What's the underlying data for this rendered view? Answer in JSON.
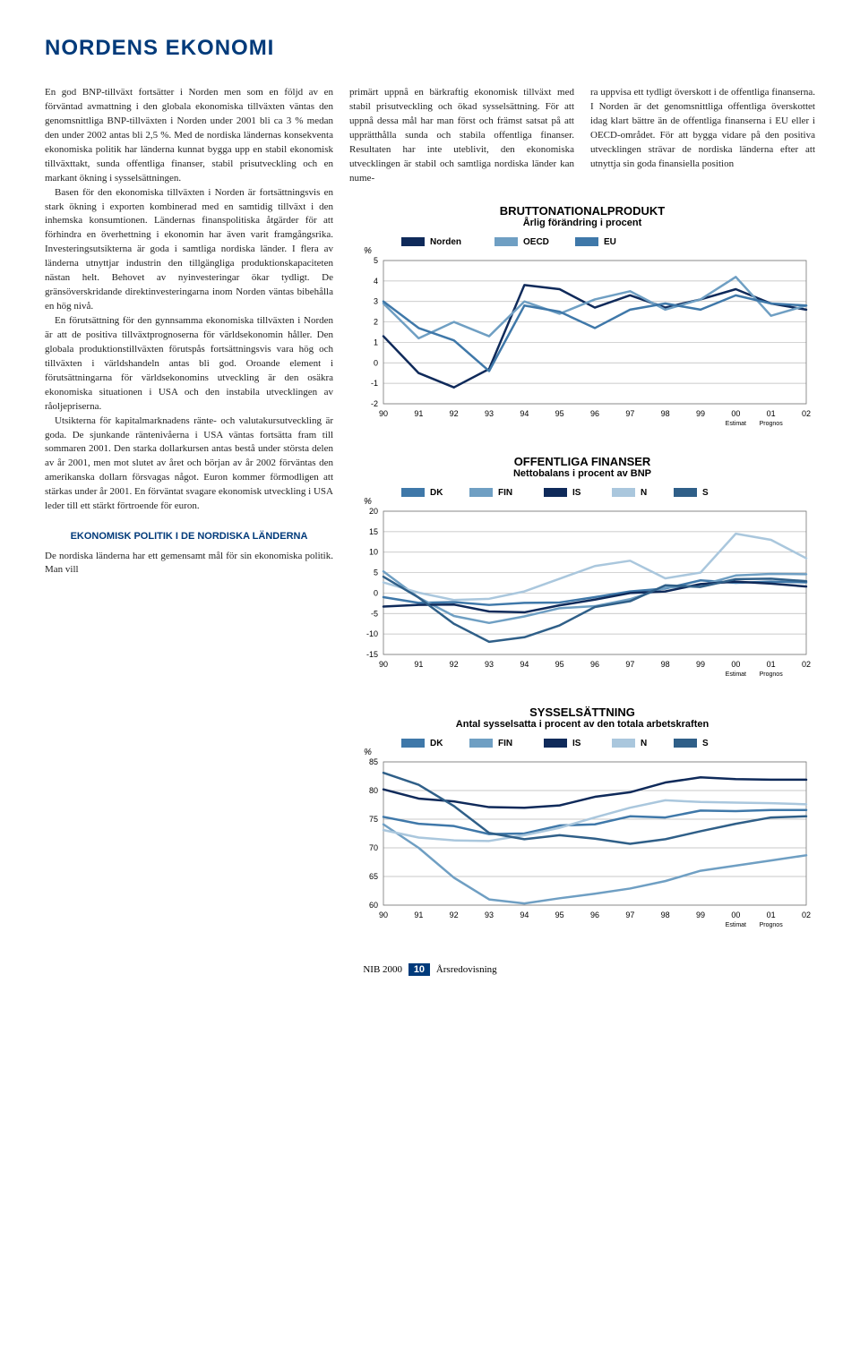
{
  "title": "NORDENS EKONOMI",
  "body_col1_paragraphs": [
    "En god BNP-tillväxt fortsätter i Norden men som en följd av en förväntad avmattning i den globala ekonomiska tillväxten väntas den genomsnittliga BNP-tillväxten i Norden under 2001 bli ca 3 % medan den under 2002 antas bli 2,5 %. Med de nordiska ländernas konsekventa ekonomiska politik har länderna kunnat bygga upp en stabil ekonomisk tillväxttakt, sunda offentliga finanser, stabil prisutveckling och en markant ökning i sysselsättningen.",
    "Basen för den ekonomiska tillväxten i Norden är fortsättningsvis en stark ökning i exporten kombinerad med en samtidig tillväxt i den inhemska konsumtionen. Ländernas finanspolitiska åtgärder för att förhindra en överhettning i ekonomin har även varit framgångsrika. Investeringsutsikterna är goda i samtliga nordiska länder. I flera av länderna utnyttjar industrin den tillgängliga produktionskapaciteten nästan helt. Behovet av nyinvesteringar ökar tydligt. De gränsöverskridande direktinvesteringarna inom Norden väntas bibehålla en hög nivå.",
    "En förutsättning för den gynnsamma ekonomiska tillväxten i Norden är att de positiva tillväxtprognoserna för världsekonomin håller. Den globala produktionstillväxten förutspås fortsättningsvis vara hög och tillväxten i världshandeln antas bli god. Oroande element i förutsättningarna för världsekonomins utveckling är den osäkra ekonomiska situationen i USA och den instabila utvecklingen av råoljepriserna.",
    "Utsikterna för kapitalmarknadens ränte- och valutakursutveckling är goda. De sjunkande räntenivåerna i USA väntas fortsätta fram till sommaren 2001. Den starka dollarkursen antas bestå under största delen av år 2001, men mot slutet av året och början av år 2002 förväntas den amerikanska dollarn försvagas något. Euron kommer förmodligen att stärkas under år 2001. En förväntat svagare ekonomisk utveckling i USA leder till ett stärkt förtroende för euron."
  ],
  "subhead1": "EKONOMISK POLITIK I DE NORDISKA LÄNDERNA",
  "body_col1_p5": "De nordiska länderna har ett gemensamt mål för sin ekonomiska politik. Man vill",
  "top_col_a": "primärt uppnå en bärkraftig ekonomisk tillväxt med stabil prisutveckling och ökad sysselsättning. För att uppnå dessa mål har man först och främst satsat på att upprätthålla sunda och stabila offentliga finanser. Resultaten har inte uteblivit, den ekonomiska utvecklingen är stabil och samtliga nordiska länder kan nume-",
  "top_col_b": "ra uppvisa ett tydligt överskott i de offentliga finanserna. I Norden är det genomsnittliga offentliga överskottet idag klart bättre än de offentliga finanserna i EU eller i OECD-området. För att bygga vidare på den positiva utvecklingen strävar de nordiska länderna efter att utnyttja sin goda finansiella position",
  "chart1": {
    "type": "line",
    "title": "BRUTTONATIONALPRODUKT",
    "subtitle": "Årlig förändring i procent",
    "ylabel": "%",
    "ylim": [
      -2,
      5
    ],
    "ytick_step": 1,
    "x_years": [
      90,
      91,
      92,
      93,
      94,
      95,
      96,
      97,
      98,
      99,
      0,
      1,
      2
    ],
    "x_labels": [
      "90",
      "91",
      "92",
      "93",
      "94",
      "95",
      "96",
      "97",
      "98",
      "99",
      "00",
      "01",
      "02"
    ],
    "x_notes": {
      "10": "Estimat",
      "11": "Prognos"
    },
    "series": [
      {
        "name": "Norden",
        "color": "#0f2a5a",
        "values": [
          1.3,
          -0.5,
          -1.2,
          -0.3,
          3.8,
          3.6,
          2.7,
          3.3,
          2.7,
          3.1,
          3.6,
          2.9,
          2.6
        ]
      },
      {
        "name": "OECD",
        "color": "#6f9fc3",
        "values": [
          2.9,
          1.2,
          2.0,
          1.3,
          3.0,
          2.4,
          3.1,
          3.5,
          2.6,
          3.1,
          4.2,
          2.3,
          2.8
        ]
      },
      {
        "name": "EU",
        "color": "#3f78a9",
        "values": [
          3.0,
          1.7,
          1.1,
          -0.4,
          2.8,
          2.5,
          1.7,
          2.6,
          2.9,
          2.6,
          3.3,
          2.9,
          2.8
        ]
      }
    ],
    "line_width": 2.5,
    "background": "#ffffff",
    "grid_color": "#b9b9b9"
  },
  "chart2": {
    "type": "line",
    "title": "OFFENTLIGA FINANSER",
    "subtitle": "Nettobalans i procent av BNP",
    "ylabel": "%",
    "ylim": [
      -15,
      20
    ],
    "ytick_step": 5,
    "x_years": [
      90,
      91,
      92,
      93,
      94,
      95,
      96,
      97,
      98,
      99,
      0,
      1,
      2
    ],
    "x_labels": [
      "90",
      "91",
      "92",
      "93",
      "94",
      "95",
      "96",
      "97",
      "98",
      "99",
      "00",
      "01",
      "02"
    ],
    "x_notes": {
      "10": "Estimat",
      "11": "Prognos"
    },
    "series": [
      {
        "name": "DK",
        "color": "#3f78a9",
        "values": [
          -1.0,
          -2.4,
          -2.2,
          -2.9,
          -2.4,
          -2.3,
          -1.0,
          0.4,
          1.1,
          3.1,
          2.5,
          2.8,
          2.6
        ]
      },
      {
        "name": "FIN",
        "color": "#6f9fc3",
        "values": [
          5.3,
          -1.1,
          -5.6,
          -7.3,
          -5.7,
          -3.7,
          -3.2,
          -1.5,
          1.3,
          1.9,
          4.3,
          4.7,
          4.6
        ]
      },
      {
        "name": "IS",
        "color": "#0f2a5a",
        "values": [
          -3.3,
          -2.9,
          -2.8,
          -4.5,
          -4.7,
          -3.0,
          -1.6,
          0.0,
          0.4,
          2.2,
          2.8,
          2.3,
          1.6
        ]
      },
      {
        "name": "N",
        "color": "#aac7dd",
        "values": [
          2.6,
          0.1,
          -1.7,
          -1.4,
          0.4,
          3.5,
          6.6,
          7.9,
          3.6,
          5.0,
          14.5,
          13.0,
          8.5
        ]
      },
      {
        "name": "S",
        "color": "#2f5f88",
        "values": [
          4.0,
          -1.1,
          -7.5,
          -11.9,
          -10.8,
          -7.9,
          -3.4,
          -2.0,
          1.9,
          1.5,
          3.4,
          3.5,
          2.9
        ]
      }
    ],
    "line_width": 2.5,
    "background": "#ffffff",
    "grid_color": "#b9b9b9"
  },
  "chart3": {
    "type": "line",
    "title": "SYSSELSÄTTNING",
    "subtitle": "Antal sysselsatta i procent av den totala arbetskraften",
    "ylabel": "%",
    "ylim": [
      60,
      85
    ],
    "ytick_step": 5,
    "x_years": [
      90,
      91,
      92,
      93,
      94,
      95,
      96,
      97,
      98,
      99,
      0,
      1,
      2
    ],
    "x_labels": [
      "90",
      "91",
      "92",
      "93",
      "94",
      "95",
      "96",
      "97",
      "98",
      "99",
      "00",
      "01",
      "02"
    ],
    "x_notes": {
      "10": "Estimat",
      "11": "Prognos"
    },
    "series": [
      {
        "name": "DK",
        "color": "#3f78a9",
        "values": [
          75.4,
          74.2,
          73.8,
          72.4,
          72.5,
          73.9,
          74.1,
          75.5,
          75.3,
          76.5,
          76.4,
          76.6,
          76.6
        ]
      },
      {
        "name": "FIN",
        "color": "#6f9fc3",
        "values": [
          74.1,
          70.0,
          64.8,
          61.0,
          60.3,
          61.2,
          62.0,
          62.9,
          64.2,
          66.0,
          66.9,
          67.8,
          68.7
        ]
      },
      {
        "name": "IS",
        "color": "#0f2a5a",
        "values": [
          80.2,
          78.6,
          78.1,
          77.1,
          77.0,
          77.4,
          78.9,
          79.7,
          81.4,
          82.3,
          82.0,
          81.9,
          81.9
        ]
      },
      {
        "name": "N",
        "color": "#aac7dd",
        "values": [
          73.1,
          71.8,
          71.3,
          71.2,
          72.2,
          73.5,
          75.3,
          77.0,
          78.3,
          78.0,
          77.9,
          77.8,
          77.6
        ]
      },
      {
        "name": "S",
        "color": "#2f5f88",
        "values": [
          83.1,
          81.0,
          77.3,
          72.6,
          71.5,
          72.2,
          71.6,
          70.7,
          71.5,
          72.9,
          74.2,
          75.3,
          75.5
        ]
      }
    ],
    "line_width": 2.5,
    "background": "#ffffff",
    "grid_color": "#b9b9b9"
  },
  "footer": {
    "left": "NIB 2000",
    "page": "10",
    "right": "Årsredovisning"
  }
}
